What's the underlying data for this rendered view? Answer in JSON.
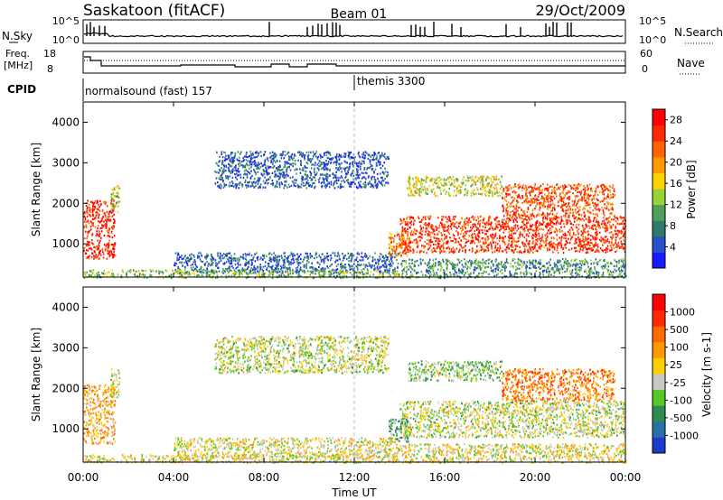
{
  "header": {
    "title": "Saskatoon (fitACF)",
    "beam": "Beam 01",
    "date": "29/Oct/2009"
  },
  "status_panels": {
    "nsky_label": "N.Sky",
    "nsearch_label": "N.Search",
    "freq_label_1": "Freq.",
    "freq_label_2": "[MHz]",
    "nave_label": "Nave",
    "cpid_label": "CPID",
    "nsky_ticks": [
      "10^5",
      "10^0"
    ],
    "nsearch_ticks": [
      "10^5",
      "10^0"
    ],
    "freq_ticks": [
      "18",
      "8"
    ],
    "nave_ticks": [
      "60",
      "0"
    ],
    "cpid_segments": [
      {
        "label": "normalsound (fast) 157",
        "start_hour": 0,
        "end_hour": 12
      },
      {
        "label": "themis 3300",
        "start_hour": 12,
        "end_hour": 24
      }
    ]
  },
  "colors": {
    "power_scale": [
      "#1a1aff",
      "#2850c8",
      "#2c7a6a",
      "#4ea05a",
      "#9ad23a",
      "#ffd200",
      "#ff9a00",
      "#ff6400",
      "#ff2800",
      "#ff0000"
    ],
    "velocity_scale": [
      "#1a3cc8",
      "#2a70a8",
      "#2e8c50",
      "#56c828",
      "#c8c8c0",
      "#ffd000",
      "#ff9a00",
      "#ff6a00",
      "#ff2a00",
      "#ff0000"
    ]
  },
  "chart_data": [
    {
      "type": "heatmap",
      "title": "Power",
      "xlabel": "Time UT",
      "ylabel": "Slant Range [km]",
      "x_ticks": [
        "00:00",
        "04:00",
        "08:00",
        "12:00",
        "16:00",
        "20:00",
        "00:00"
      ],
      "xlim_hours": [
        0,
        24
      ],
      "y_ticks": [
        1000,
        2000,
        3000,
        4000
      ],
      "ylim_km": [
        180,
        4500
      ],
      "colorbar": {
        "label": "Power [dB]",
        "ticks": [
          4,
          8,
          12,
          16,
          20,
          24,
          28
        ],
        "range": [
          0,
          30
        ]
      },
      "scatter_regions": [
        {
          "hours": [
            0,
            1.4
          ],
          "km": [
            650,
            2100
          ],
          "level": 0.9
        },
        {
          "hours": [
            1.2,
            1.6
          ],
          "km": [
            1800,
            2500
          ],
          "level": 0.45
        },
        {
          "hours": [
            5.8,
            13.5
          ],
          "km": [
            2400,
            3300
          ],
          "level": 0.18
        },
        {
          "hours": [
            4.0,
            14.0
          ],
          "km": [
            300,
            800
          ],
          "level": 0.2
        },
        {
          "hours": [
            0,
            14.0
          ],
          "km": [
            180,
            380
          ],
          "level": 0.4
        },
        {
          "hours": [
            14.0,
            24.0
          ],
          "km": [
            800,
            1700
          ],
          "level": 0.85
        },
        {
          "hours": [
            13.5,
            14.4
          ],
          "km": [
            700,
            1300
          ],
          "level": 0.7
        },
        {
          "hours": [
            14.3,
            18.5
          ],
          "km": [
            2200,
            2700
          ],
          "level": 0.5
        },
        {
          "hours": [
            18.5,
            23.5
          ],
          "km": [
            1700,
            2500
          ],
          "level": 0.8
        },
        {
          "hours": [
            14.0,
            24.0
          ],
          "km": [
            180,
            650
          ],
          "level": 0.3
        }
      ]
    },
    {
      "type": "heatmap",
      "title": "Velocity",
      "xlabel": "Time UT",
      "ylabel": "Slant Range [km]",
      "x_ticks": [
        "00:00",
        "04:00",
        "08:00",
        "12:00",
        "16:00",
        "20:00",
        "00:00"
      ],
      "xlim_hours": [
        0,
        24
      ],
      "y_ticks": [
        1000,
        2000,
        3000,
        4000
      ],
      "ylim_km": [
        180,
        4500
      ],
      "colorbar": {
        "label": "Velocity [m s-1]",
        "ticks": [
          "1000",
          "500",
          "100",
          "25",
          "-25",
          "-100",
          "-500",
          "-1000"
        ],
        "range": [
          -1000,
          1000
        ]
      },
      "scatter_regions": [
        {
          "hours": [
            0,
            1.4
          ],
          "km": [
            650,
            2100
          ],
          "level": 0.62
        },
        {
          "hours": [
            1.2,
            1.6
          ],
          "km": [
            1800,
            2500
          ],
          "level": 0.45
        },
        {
          "hours": [
            5.8,
            13.5
          ],
          "km": [
            2400,
            3300
          ],
          "level": 0.45
        },
        {
          "hours": [
            4.0,
            14.0
          ],
          "km": [
            300,
            800
          ],
          "level": 0.5
        },
        {
          "hours": [
            0,
            14.0
          ],
          "km": [
            180,
            380
          ],
          "level": 0.5
        },
        {
          "hours": [
            14.0,
            24.0
          ],
          "km": [
            800,
            1700
          ],
          "level": 0.45
        },
        {
          "hours": [
            13.5,
            14.4
          ],
          "km": [
            700,
            1300
          ],
          "level": 0.3
        },
        {
          "hours": [
            14.3,
            18.5
          ],
          "km": [
            2200,
            2700
          ],
          "level": 0.38
        },
        {
          "hours": [
            18.5,
            23.5
          ],
          "km": [
            1700,
            2500
          ],
          "level": 0.72
        },
        {
          "hours": [
            14.0,
            24.0
          ],
          "km": [
            180,
            650
          ],
          "level": 0.5
        }
      ]
    }
  ]
}
